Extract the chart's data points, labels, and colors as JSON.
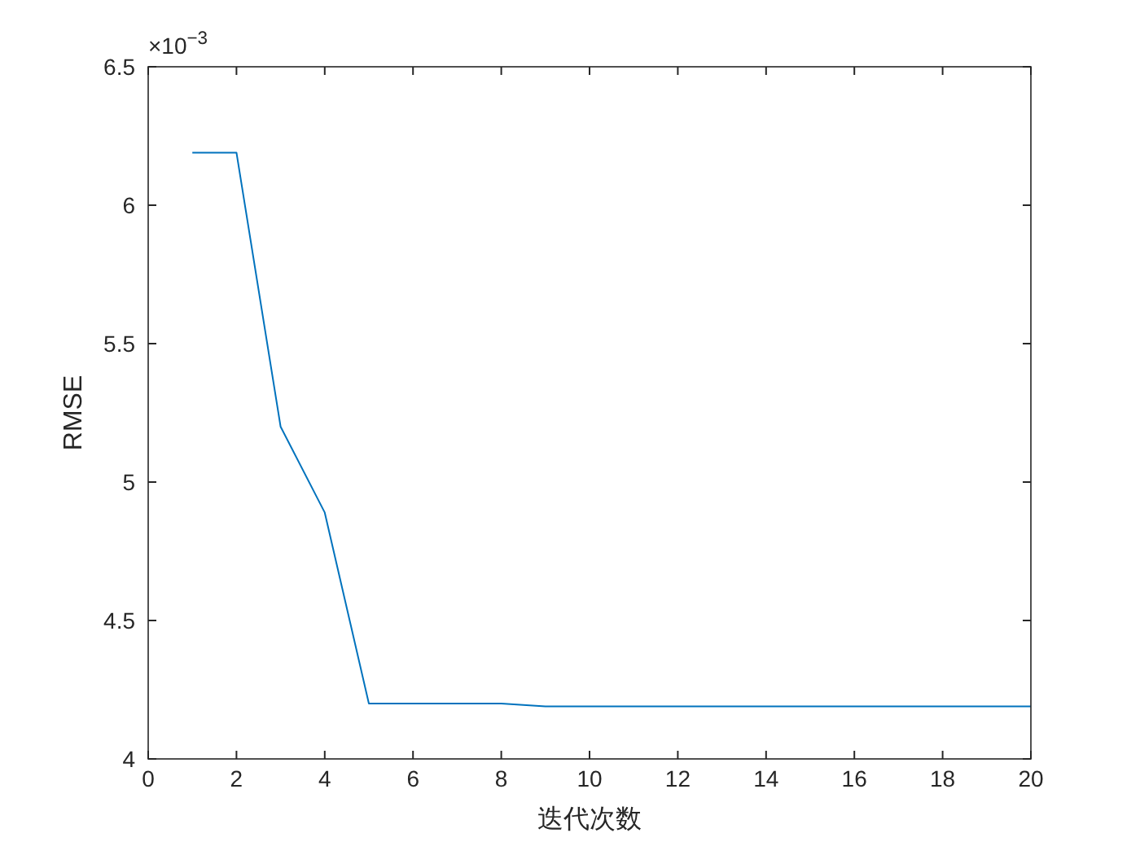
{
  "chart_data": {
    "type": "line",
    "x": [
      1,
      2,
      3,
      4,
      5,
      6,
      7,
      8,
      9,
      10,
      11,
      12,
      13,
      14,
      15,
      16,
      17,
      18,
      19,
      20
    ],
    "series": [
      {
        "color": "#0072bd",
        "values": [
          6.19,
          6.19,
          5.2,
          4.89,
          4.2,
          4.2,
          4.2,
          4.2,
          4.19,
          4.19,
          4.19,
          4.19,
          4.19,
          4.19,
          4.19,
          4.19,
          4.19,
          4.19,
          4.19,
          4.19
        ]
      }
    ],
    "xlim": [
      0,
      20
    ],
    "xticks": [
      0,
      2,
      4,
      6,
      8,
      10,
      12,
      14,
      16,
      18,
      20
    ],
    "ylim": [
      4,
      6.5
    ],
    "yticks": [
      4,
      4.5,
      5,
      5.5,
      6,
      6.5
    ],
    "xlabel": "迭代次数",
    "ylabel": "RMSE",
    "annotations": [
      "×10$^{−3}$"
    ],
    "grid": false
  }
}
